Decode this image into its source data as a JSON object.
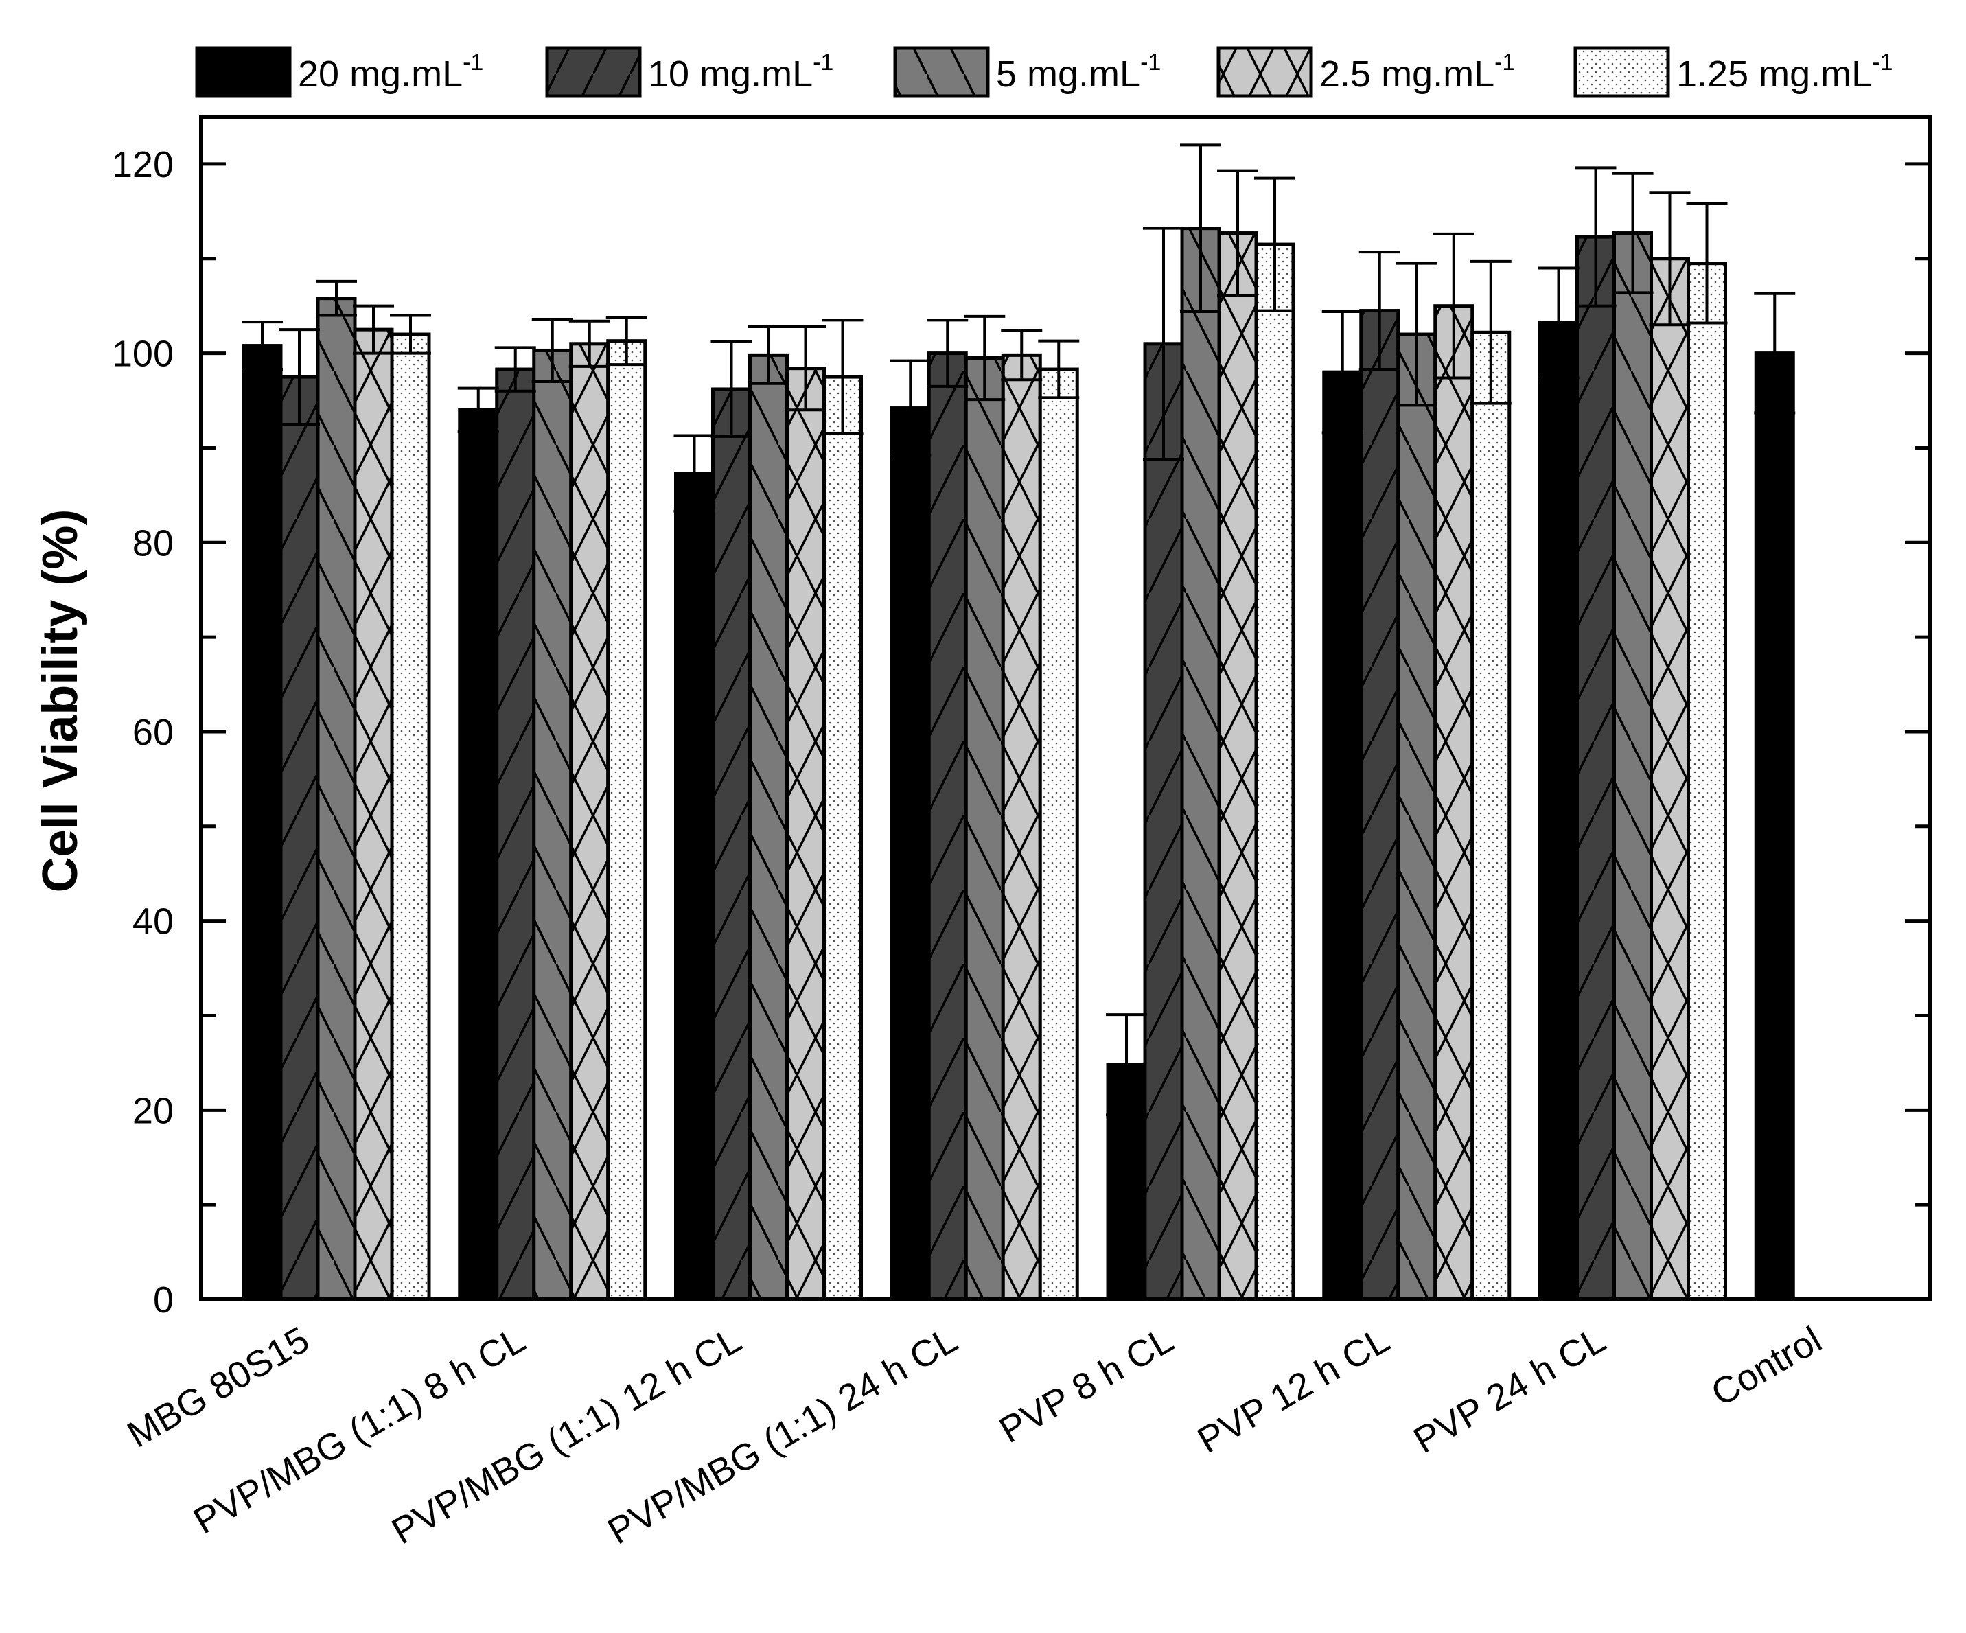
{
  "chart_data": {
    "type": "bar",
    "title": "",
    "xlabel": "",
    "ylabel": "Cell Viability (%)",
    "ylim": [
      0,
      125
    ],
    "yticks": [
      0,
      20,
      40,
      60,
      80,
      100,
      120
    ],
    "grid": false,
    "legend_position": "top",
    "categories": [
      "MBG 80S15",
      "PVP/MBG (1:1) 8 h CL",
      "PVP/MBG (1:1) 12 h CL",
      "PVP/MBG (1:1) 24 h CL",
      "PVP 8 h CL",
      "PVP 12 h CL",
      "PVP 24 h CL",
      "Control"
    ],
    "series": [
      {
        "name": "20 mg.mL",
        "superscript": "-1",
        "fill": "#000000",
        "pattern": "solid",
        "values": [
          100.8,
          94.0,
          87.3,
          94.2,
          24.8,
          98.0,
          103.2,
          100.0
        ],
        "errors": [
          2.5,
          2.3,
          4.0,
          5.0,
          5.3,
          6.4,
          5.8,
          6.3
        ]
      },
      {
        "name": "10 mg.mL",
        "superscript": "-1",
        "fill": "#404040",
        "pattern": "diagonal",
        "values": [
          97.5,
          98.3,
          96.2,
          100.0,
          101.0,
          104.5,
          112.3,
          null
        ],
        "errors": [
          5.0,
          2.3,
          5.0,
          3.5,
          12.2,
          6.2,
          7.3,
          null
        ]
      },
      {
        "name": "5 mg.mL",
        "superscript": "-1",
        "fill": "#7a7a7a",
        "pattern": "back-diagonal",
        "values": [
          105.8,
          100.3,
          99.8,
          99.5,
          113.2,
          102.0,
          112.7,
          null
        ],
        "errors": [
          1.8,
          3.3,
          3.0,
          4.4,
          8.8,
          7.5,
          6.3,
          null
        ]
      },
      {
        "name": "2.5 mg.mL",
        "superscript": "-1",
        "fill": "#c8c8c8",
        "pattern": "crosshatch",
        "values": [
          102.5,
          101.0,
          98.4,
          99.8,
          112.7,
          105.0,
          110.0,
          null
        ],
        "errors": [
          2.5,
          2.4,
          4.4,
          2.6,
          6.6,
          7.6,
          7.0,
          null
        ]
      },
      {
        "name": "1.25 mg.mL",
        "superscript": "-1",
        "fill": "#ffffff",
        "pattern": "dots",
        "values": [
          102.0,
          101.3,
          97.5,
          98.3,
          111.5,
          102.2,
          109.5,
          null
        ],
        "errors": [
          2.0,
          2.5,
          6.0,
          3.0,
          7.0,
          7.5,
          6.3,
          null
        ]
      }
    ]
  }
}
